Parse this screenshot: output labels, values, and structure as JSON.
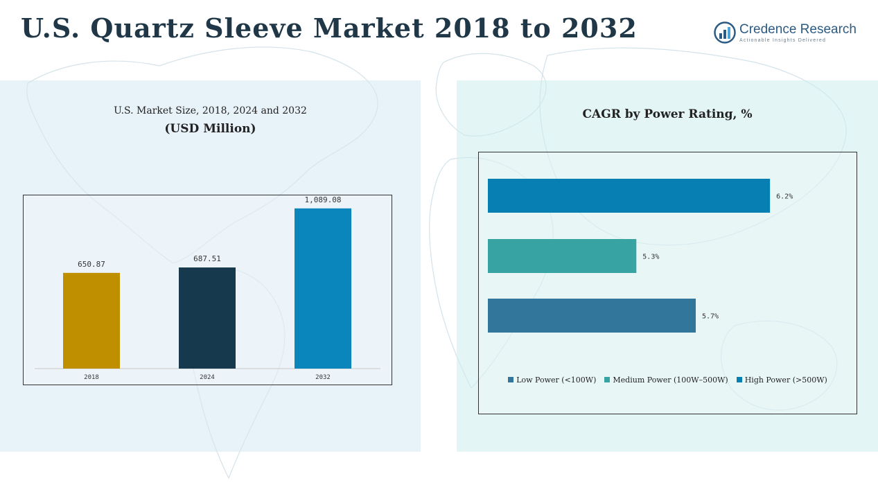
{
  "header": {
    "title": "U.S. Quartz Sleeve Market 2018 to 2032",
    "logo_name": "Credence Research",
    "logo_tagline": "Actionable Insights Delivered",
    "logo_icon": "bar-chart-logo-icon",
    "logo_color": "#2c5a83"
  },
  "left_panel": {
    "title": "U.S. Market Size, 2018, 2024 and 2032",
    "subtitle": "(USD Million)"
  },
  "right_panel": {
    "title": "CAGR by Power Rating, %"
  },
  "chart_data": [
    {
      "type": "bar",
      "title": "U.S. Market Size, 2018, 2024 and 2032",
      "subtitle": "(USD Million)",
      "categories": [
        "2018",
        "2024",
        "2032"
      ],
      "values": [
        650.87,
        687.51,
        1089.08
      ],
      "value_labels": [
        "650.87",
        "687.51",
        "1,089.08"
      ],
      "colors": [
        "#bf8f00",
        "#17394d",
        "#0a86bd"
      ],
      "ylim": [
        0,
        1300
      ],
      "grid": false,
      "legend": "none"
    },
    {
      "type": "bar",
      "orientation": "horizontal",
      "title": "CAGR by Power Rating, %",
      "categories": [
        "High Power (>500W)",
        "Medium Power (100W–500W)",
        "Low Power (<100W)"
      ],
      "values": [
        6.2,
        5.3,
        5.7
      ],
      "value_labels": [
        "6.2%",
        "5.3%",
        "5.7%"
      ],
      "colors": [
        "#087fb2",
        "#37a3a3",
        "#32779b"
      ],
      "xlim": [
        4.3,
        6.4
      ],
      "grid": false,
      "legend": "bottom",
      "legend_entries": [
        {
          "label": "Low Power (<100W)",
          "color": "#32779b"
        },
        {
          "label": "Medium Power (100W–500W)",
          "color": "#37a3a3"
        },
        {
          "label": "High Power (>500W)",
          "color": "#087fb2"
        }
      ]
    }
  ]
}
